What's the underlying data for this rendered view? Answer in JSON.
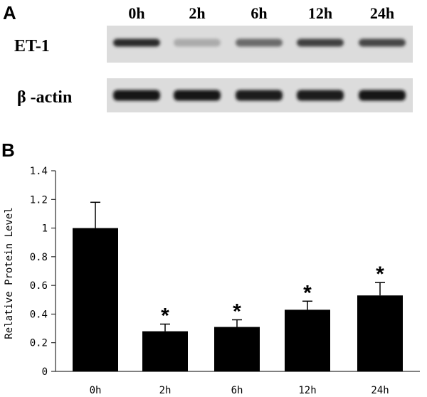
{
  "panel_a": {
    "letter": "A",
    "lanes": [
      "0h",
      "2h",
      "6h",
      "12h",
      "24h"
    ],
    "rows": [
      {
        "label": "ET-1",
        "band_intensity": [
          0.85,
          0.25,
          0.55,
          0.75,
          0.72
        ]
      },
      {
        "label": "β -actin",
        "band_intensity": [
          0.95,
          0.95,
          0.92,
          0.92,
          0.93
        ]
      }
    ]
  },
  "panel_b": {
    "letter": "B"
  },
  "chart_data": {
    "type": "bar",
    "categories": [
      "0h",
      "2h",
      "6h",
      "12h",
      "24h"
    ],
    "values": [
      1.0,
      0.28,
      0.31,
      0.43,
      0.53
    ],
    "error": [
      0.18,
      0.05,
      0.05,
      0.06,
      0.09
    ],
    "significance": [
      "",
      "*",
      "*",
      "*",
      "*"
    ],
    "title": "",
    "xlabel": "",
    "ylabel": "Relative Protein Level",
    "ylim": [
      0,
      1.4
    ],
    "yticks": [
      0,
      0.2,
      0.4,
      0.6,
      0.8,
      1,
      1.2,
      1.4
    ],
    "ytick_labels": [
      "0",
      "0.2",
      "0.4",
      "0.6",
      "0.8",
      "1",
      "1.2",
      "1.4"
    ],
    "grid": false,
    "bar_color": "#000000"
  }
}
